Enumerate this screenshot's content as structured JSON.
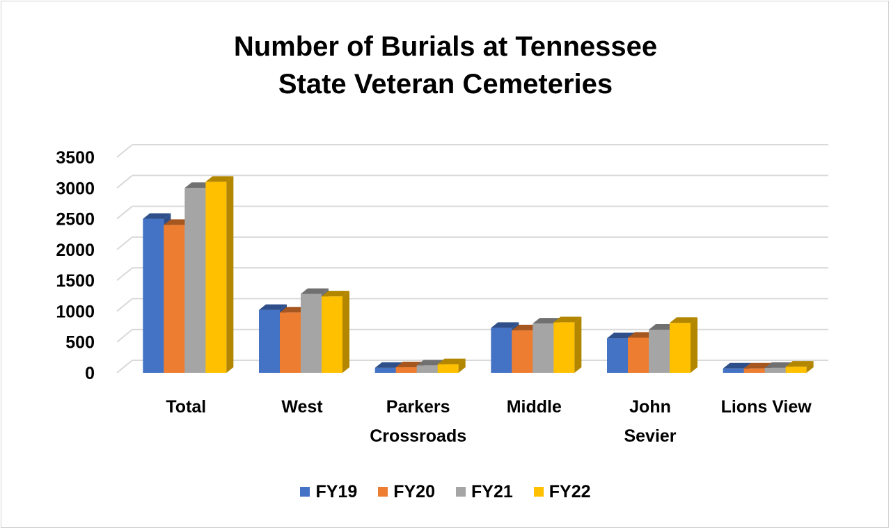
{
  "chart_data": {
    "type": "bar",
    "title_lines": [
      "Number of Burials at Tennessee",
      "State Veteran Cemeteries"
    ],
    "categories": [
      "Total",
      "West",
      "Parkers Crossroads",
      "Middle",
      "John Sevier",
      "Lions View"
    ],
    "category_lines": [
      [
        "Total"
      ],
      [
        "West"
      ],
      [
        "Parkers",
        "Crossroads"
      ],
      [
        "Middle"
      ],
      [
        "John",
        "Sevier"
      ],
      [
        "Lions View"
      ]
    ],
    "series": [
      {
        "name": "FY19",
        "color": "#4472C4",
        "side_color": "#2E4F8A",
        "values": [
          2500,
          1020,
          80,
          730,
          560,
          70
        ]
      },
      {
        "name": "FY20",
        "color": "#ED7D31",
        "side_color": "#A6561F",
        "values": [
          2400,
          980,
          90,
          690,
          570,
          70
        ]
      },
      {
        "name": "FY21",
        "color": "#A5A5A5",
        "side_color": "#707070",
        "values": [
          3000,
          1280,
          120,
          800,
          700,
          80
        ]
      },
      {
        "name": "FY22",
        "color": "#FFC000",
        "side_color": "#B38600",
        "values": [
          3100,
          1240,
          140,
          820,
          810,
          100
        ]
      }
    ],
    "yticks": [
      "3500",
      "3000",
      "2500",
      "2000",
      "1500",
      "1000",
      "500",
      "0"
    ],
    "ylim": [
      0,
      3500
    ],
    "xlabel": "",
    "ylabel": "",
    "grid": true,
    "legend_position": "bottom"
  }
}
